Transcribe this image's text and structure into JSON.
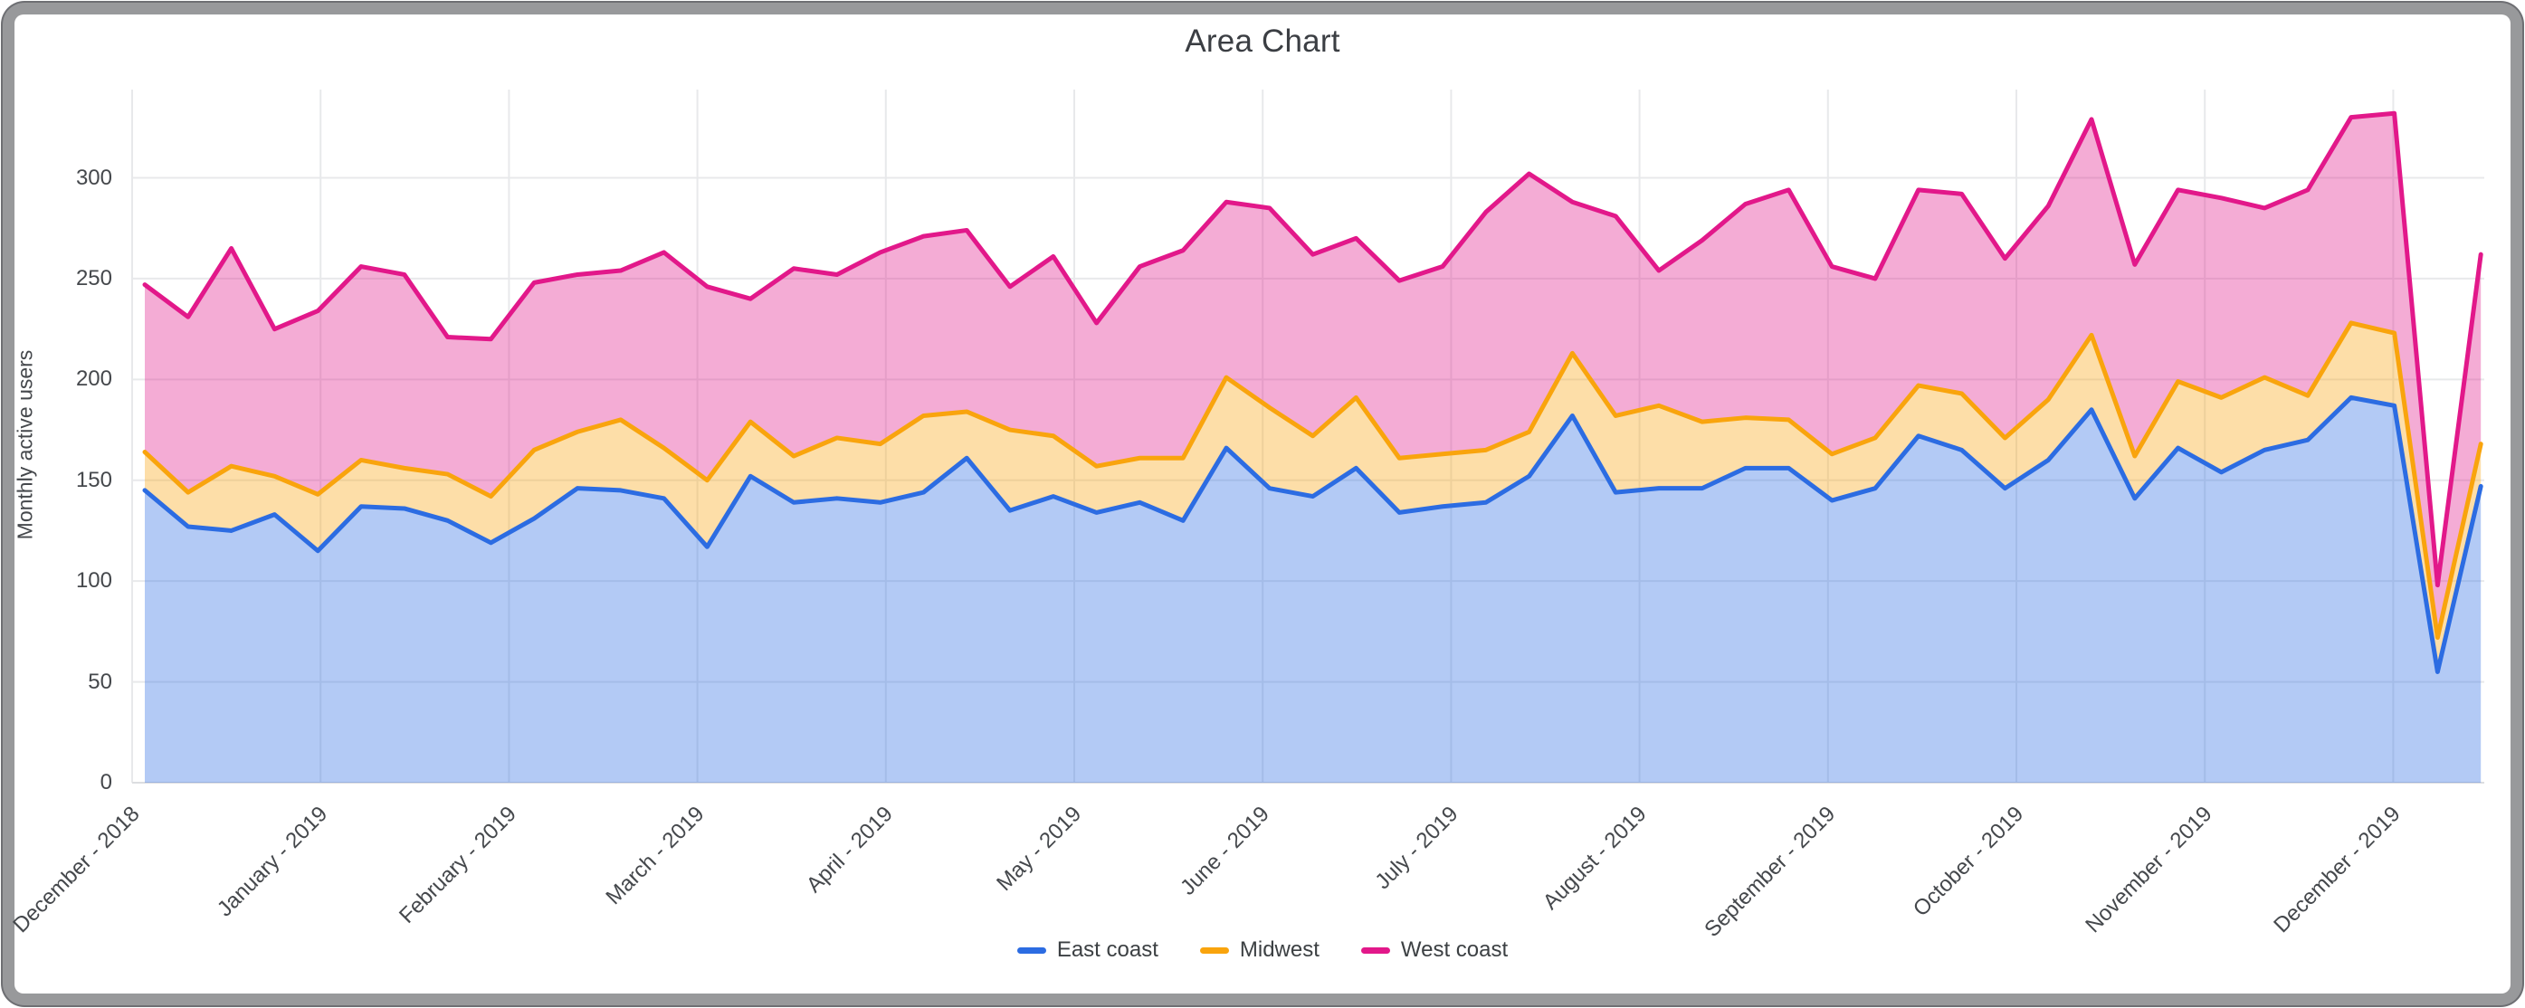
{
  "window": {
    "kind": "rounded application window frame"
  },
  "chart": {
    "title": "Area Chart",
    "y_axis": {
      "title": "Monthly active users",
      "ticks": [
        0,
        50,
        100,
        150,
        200,
        250,
        300
      ]
    },
    "x_axis": {
      "months": [
        "December - 2018",
        "January - 2019",
        "February - 2019",
        "March - 2019",
        "April - 2019",
        "May - 2019",
        "June - 2019",
        "July - 2019",
        "August - 2019",
        "September - 2019",
        "October - 2019",
        "November - 2019",
        "December - 2019"
      ]
    },
    "legend": [
      {
        "label": "East coast",
        "color": "#2c6ce2"
      },
      {
        "label": "Midwest",
        "color": "#f9a40d"
      },
      {
        "label": "West coast",
        "color": "#e2188a"
      }
    ]
  },
  "chart_data": {
    "type": "area",
    "stacked": false,
    "title": "Area Chart",
    "xlabel": "",
    "ylabel": "Monthly active users",
    "ylim": [
      0,
      345
    ],
    "grid": true,
    "legend_position": "bottom-center",
    "x_granularity": "weekly points, month tick labels",
    "x_month_ticks": [
      "December - 2018",
      "January - 2019",
      "February - 2019",
      "March - 2019",
      "April - 2019",
      "May - 2019",
      "June - 2019",
      "July - 2019",
      "August - 2019",
      "September - 2019",
      "October - 2019",
      "November - 2019",
      "December - 2019"
    ],
    "series": [
      {
        "name": "West coast",
        "line_color": "#e2188a",
        "fill_rgba": [
          224,
          24,
          138,
          0.36
        ],
        "values": [
          247,
          231,
          265,
          225,
          234,
          256,
          252,
          221,
          220,
          248,
          252,
          254,
          263,
          246,
          240,
          255,
          252,
          263,
          271,
          274,
          246,
          261,
          228,
          256,
          264,
          288,
          285,
          262,
          270,
          249,
          256,
          283,
          302,
          288,
          281,
          254,
          269,
          287,
          294,
          256,
          250,
          294,
          292,
          260,
          286,
          329,
          257,
          294,
          290,
          285,
          294,
          330,
          332,
          98,
          262
        ]
      },
      {
        "name": "Midwest",
        "line_color": "#f9a40d",
        "fill_rgba": [
          249,
          164,
          13,
          0.36
        ],
        "values": [
          164,
          144,
          157,
          152,
          143,
          160,
          156,
          153,
          142,
          165,
          174,
          180,
          166,
          150,
          179,
          162,
          171,
          168,
          182,
          184,
          175,
          172,
          157,
          161,
          161,
          201,
          186,
          172,
          191,
          161,
          163,
          165,
          174,
          213,
          182,
          187,
          179,
          181,
          180,
          163,
          171,
          197,
          193,
          171,
          190,
          222,
          162,
          199,
          191,
          201,
          192,
          228,
          223,
          72,
          168
        ]
      },
      {
        "name": "East coast",
        "line_color": "#2c6ce2",
        "fill_rgba": [
          44,
          108,
          226,
          0.36
        ],
        "values": [
          145,
          127,
          125,
          133,
          115,
          137,
          136,
          130,
          119,
          131,
          146,
          145,
          141,
          117,
          152,
          139,
          141,
          139,
          144,
          161,
          135,
          142,
          134,
          139,
          130,
          166,
          146,
          142,
          156,
          134,
          137,
          139,
          152,
          182,
          144,
          146,
          146,
          156,
          156,
          140,
          146,
          172,
          165,
          146,
          160,
          185,
          141,
          166,
          154,
          165,
          170,
          191,
          187,
          55,
          147
        ]
      }
    ]
  }
}
